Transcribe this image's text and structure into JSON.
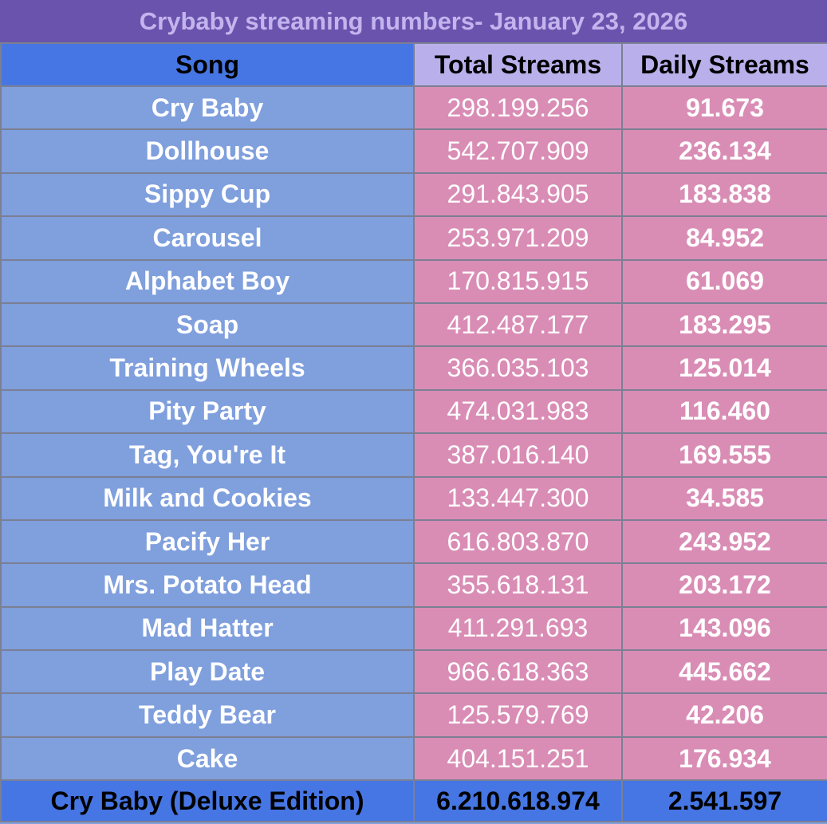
{
  "title": "Crybaby streaming numbers- January 23, 2026",
  "headers": {
    "song": "Song",
    "total": "Total Streams",
    "daily": "Daily Streams"
  },
  "rows": [
    {
      "song": "Cry Baby",
      "total": "298.199.256",
      "daily": "91.673"
    },
    {
      "song": "Dollhouse",
      "total": "542.707.909",
      "daily": "236.134"
    },
    {
      "song": "Sippy Cup",
      "total": "291.843.905",
      "daily": "183.838"
    },
    {
      "song": "Carousel",
      "total": "253.971.209",
      "daily": "84.952"
    },
    {
      "song": "Alphabet Boy",
      "total": "170.815.915",
      "daily": "61.069"
    },
    {
      "song": "Soap",
      "total": "412.487.177",
      "daily": "183.295"
    },
    {
      "song": "Training Wheels",
      "total": "366.035.103",
      "daily": "125.014"
    },
    {
      "song": "Pity Party",
      "total": "474.031.983",
      "daily": "116.460"
    },
    {
      "song": "Tag, You're It",
      "total": "387.016.140",
      "daily": "169.555"
    },
    {
      "song": "Milk and Cookies",
      "total": "133.447.300",
      "daily": "34.585"
    },
    {
      "song": "Pacify Her",
      "total": "616.803.870",
      "daily": "243.952"
    },
    {
      "song": "Mrs. Potato Head",
      "total": "355.618.131",
      "daily": "203.172"
    },
    {
      "song": "Mad Hatter",
      "total": "411.291.693",
      "daily": "143.096"
    },
    {
      "song": "Play Date",
      "total": "966.618.363",
      "daily": "445.662"
    },
    {
      "song": "Teddy Bear",
      "total": "125.579.769",
      "daily": "42.206"
    },
    {
      "song": "Cake",
      "total": "404.151.251",
      "daily": "176.934"
    }
  ],
  "total_row": {
    "song": "Cry Baby (Deluxe Edition)",
    "total": "6.210.618.974",
    "daily": "2.541.597"
  },
  "colors": {
    "title_bg": "#6a53ad",
    "title_text": "#c3b4ee",
    "song_header_bg": "#4676e3",
    "stream_header_bg": "#b9b0eb",
    "song_cell_bg": "#7f9fdd",
    "stream_cell_bg": "#d98db5",
    "footer_bg": "#4676e3"
  }
}
